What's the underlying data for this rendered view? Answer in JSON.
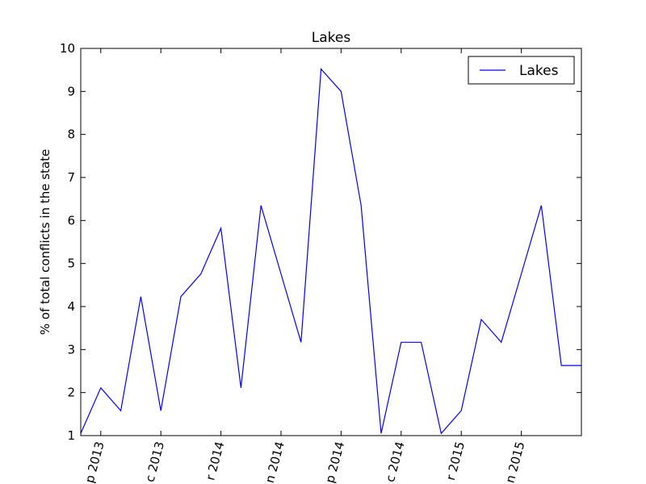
{
  "chart_data": {
    "type": "line",
    "title": "Lakes",
    "xlabel": "",
    "ylabel": "% of total conflicts in the state",
    "ylim": [
      1,
      10
    ],
    "yticks": [
      1,
      2,
      3,
      4,
      5,
      6,
      7,
      8,
      9,
      10
    ],
    "x_tick_labels": [
      "p 2013",
      "c 2013",
      "r 2014",
      "n 2014",
      "p 2014",
      "c 2014",
      "r 2015",
      "n 2015"
    ],
    "legend": {
      "position": "upper right",
      "entries": [
        "Lakes"
      ]
    },
    "grid": false,
    "series": [
      {
        "name": "Lakes",
        "color": "#0000ff",
        "values": [
          1.05,
          2.11,
          1.58,
          4.23,
          1.58,
          4.23,
          4.76,
          5.82,
          2.11,
          6.35,
          4.76,
          3.17,
          9.52,
          9.0,
          6.35,
          1.05,
          3.17,
          3.17,
          1.05,
          1.58,
          3.7,
          3.17,
          4.76,
          6.35,
          2.63,
          2.63
        ]
      }
    ]
  }
}
